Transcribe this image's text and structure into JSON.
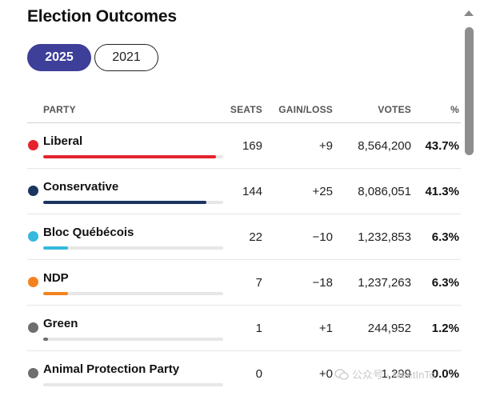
{
  "title": "Election Outcomes",
  "tabs": [
    {
      "label": "2025",
      "active": true
    },
    {
      "label": "2021",
      "active": false
    }
  ],
  "columns": {
    "party": "PARTY",
    "seats": "SEATS",
    "gain": "GAIN/LOSS",
    "votes": "VOTES",
    "pct": "%"
  },
  "rows": [
    {
      "party": "Liberal",
      "color": "#e5232f",
      "seats": "169",
      "gain": "+9",
      "votes": "8,564,200",
      "pct": "43.7%",
      "bar_fraction": 0.437
    },
    {
      "party": "Conservative",
      "color": "#1b3460",
      "seats": "144",
      "gain": "+25",
      "votes": "8,086,051",
      "pct": "41.3%",
      "bar_fraction": 0.413
    },
    {
      "party": "Bloc Québécois",
      "color": "#35b9dc",
      "seats": "22",
      "gain": "−10",
      "votes": "1,232,853",
      "pct": "6.3%",
      "bar_fraction": 0.063
    },
    {
      "party": "NDP",
      "color": "#f5821f",
      "seats": "7",
      "gain": "−18",
      "votes": "1,237,263",
      "pct": "6.3%",
      "bar_fraction": 0.063
    },
    {
      "party": "Green",
      "color": "#6e6e6e",
      "seats": "1",
      "gain": "+1",
      "votes": "244,952",
      "pct": "1.2%",
      "bar_fraction": 0.012
    },
    {
      "party": "Animal Protection Party",
      "color": "#6e6e6e",
      "seats": "0",
      "gain": "+0",
      "votes": "1,299",
      "pct": "0.0%",
      "bar_fraction": 0.0
    }
  ],
  "watermark": {
    "text": "公众号 · MeetInTo",
    "icon": "wechat-icon"
  }
}
